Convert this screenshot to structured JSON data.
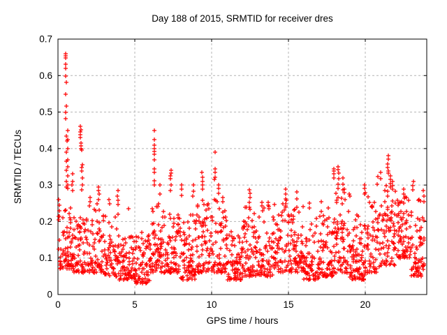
{
  "window": {
    "background": "#ffffff"
  },
  "chart_data": {
    "type": "scatter",
    "title": "Day 188 of 2015, SRMTID for receiver dres",
    "xlabel": "GPS time / hours",
    "ylabel": "SRMTID / TECUs",
    "xlim": [
      0,
      24
    ],
    "ylim": [
      0,
      0.7
    ],
    "xticks": [
      0,
      5,
      10,
      15,
      20
    ],
    "xtick_labels": [
      "0",
      "5",
      "10",
      "15",
      "20"
    ],
    "yticks": [
      0,
      0.1,
      0.2,
      0.3,
      0.4,
      0.5,
      0.6,
      0.7
    ],
    "ytick_labels": [
      "0",
      "0.1",
      "0.2",
      "0.3",
      "0.4",
      "0.5",
      "0.6",
      "0.7"
    ],
    "grid": {
      "show": true,
      "color": "#b4b4b4",
      "dash": "3,3"
    },
    "axis_color": "#000000",
    "legend": null,
    "marker": {
      "shape": "plus",
      "color": "#ff0000",
      "size": 7,
      "stroke_width": 1.25
    },
    "spike_points": [
      {
        "x": 0.08,
        "ys": [
          0.26,
          0.245,
          0.23,
          0.215
        ]
      },
      {
        "x": 0.5,
        "ys": [
          0.66,
          0.655,
          0.648,
          0.632,
          0.62
        ]
      },
      {
        "x": 0.52,
        "ys": [
          0.598,
          0.582,
          0.548,
          0.517,
          0.5,
          0.482
        ]
      },
      {
        "x": 0.55,
        "ys": [
          0.435,
          0.42,
          0.39,
          0.365,
          0.34,
          0.31,
          0.295
        ]
      },
      {
        "x": 0.64,
        "ys": [
          0.45,
          0.425,
          0.4,
          0.37,
          0.35,
          0.325,
          0.3,
          0.29
        ]
      },
      {
        "x": 0.95,
        "ys": [
          0.33,
          0.31,
          0.3,
          0.285
        ]
      },
      {
        "x": 1.48,
        "ys": [
          0.46,
          0.452,
          0.445,
          0.438,
          0.43
        ]
      },
      {
        "x": 1.52,
        "ys": [
          0.415,
          0.408,
          0.4,
          0.395
        ]
      },
      {
        "x": 1.56,
        "ys": [
          0.355,
          0.348,
          0.338,
          0.32,
          0.3,
          0.287
        ]
      },
      {
        "x": 2.1,
        "ys": [
          0.265,
          0.255
        ]
      },
      {
        "x": 2.65,
        "ys": [
          0.295,
          0.285,
          0.275,
          0.26
        ]
      },
      {
        "x": 3.35,
        "ys": [
          0.26,
          0.248
        ]
      },
      {
        "x": 3.88,
        "ys": [
          0.285,
          0.27,
          0.258,
          0.246
        ]
      },
      {
        "x": 4.6,
        "ys": [
          0.235
        ]
      },
      {
        "x": 6.28,
        "ys": [
          0.45,
          0.425,
          0.41,
          0.4,
          0.392,
          0.385,
          0.37,
          0.345,
          0.335,
          0.312,
          0.3
        ]
      },
      {
        "x": 6.65,
        "ys": [
          0.3,
          0.275
        ]
      },
      {
        "x": 7.35,
        "ys": [
          0.34,
          0.332,
          0.325,
          0.317,
          0.3,
          0.285
        ]
      },
      {
        "x": 8.05,
        "ys": [
          0.3,
          0.288,
          0.272
        ]
      },
      {
        "x": 8.8,
        "ys": [
          0.3,
          0.283,
          0.27
        ]
      },
      {
        "x": 9.4,
        "ys": [
          0.335,
          0.322,
          0.31,
          0.3,
          0.288
        ]
      },
      {
        "x": 10.22,
        "ys": [
          0.39,
          0.345,
          0.335,
          0.322,
          0.315
        ]
      },
      {
        "x": 10.45,
        "ys": [
          0.3,
          0.29,
          0.278
        ]
      },
      {
        "x": 10.7,
        "ys": [
          0.265
        ]
      },
      {
        "x": 12.48,
        "ys": [
          0.287,
          0.278,
          0.265,
          0.252,
          0.24
        ]
      },
      {
        "x": 13.25,
        "ys": [
          0.252,
          0.242
        ]
      },
      {
        "x": 13.7,
        "ys": [
          0.253,
          0.245,
          0.235
        ]
      },
      {
        "x": 14.8,
        "ys": [
          0.289,
          0.275,
          0.262,
          0.248
        ]
      },
      {
        "x": 15.55,
        "ys": [
          0.281,
          0.262,
          0.24
        ]
      },
      {
        "x": 16.35,
        "ys": [
          0.25,
          0.238
        ]
      },
      {
        "x": 17.95,
        "ys": [
          0.345,
          0.338,
          0.33,
          0.32
        ]
      },
      {
        "x": 18.25,
        "ys": [
          0.35,
          0.342,
          0.332,
          0.318,
          0.302,
          0.29
        ]
      },
      {
        "x": 18.55,
        "ys": [
          0.32,
          0.302,
          0.286
        ]
      },
      {
        "x": 19.95,
        "ys": [
          0.3,
          0.29,
          0.276
        ]
      },
      {
        "x": 20.8,
        "ys": [
          0.323,
          0.302
        ]
      },
      {
        "x": 21.0,
        "ys": [
          0.335,
          0.318
        ]
      },
      {
        "x": 21.48,
        "ys": [
          0.381,
          0.371,
          0.357,
          0.348,
          0.339,
          0.333
        ]
      },
      {
        "x": 21.62,
        "ys": [
          0.325,
          0.315,
          0.305,
          0.295
        ]
      },
      {
        "x": 21.75,
        "ys": [
          0.31,
          0.298,
          0.288
        ]
      },
      {
        "x": 22.5,
        "ys": [
          0.288,
          0.276
        ]
      },
      {
        "x": 23.1,
        "ys": [
          0.31,
          0.298,
          0.286
        ]
      },
      {
        "x": 23.45,
        "ys": [
          0.088,
          0.075,
          0.062,
          0.052
        ]
      },
      {
        "x": 23.8,
        "ys": [
          0.285,
          0.27,
          0.255
        ]
      }
    ],
    "band": {
      "seed": 20150188,
      "columns_per_hour": 13,
      "points_per_column": [
        4,
        7
      ],
      "y_power": 1.7,
      "x_jitter": 0.06,
      "segments": [
        [
          0.03,
          1.0,
          0.07,
          0.24
        ],
        [
          1.0,
          2.0,
          0.06,
          0.22
        ],
        [
          2.0,
          3.0,
          0.06,
          0.25
        ],
        [
          3.0,
          4.0,
          0.05,
          0.22
        ],
        [
          4.0,
          5.0,
          0.04,
          0.16
        ],
        [
          5.0,
          6.0,
          0.03,
          0.17
        ],
        [
          6.0,
          7.0,
          0.06,
          0.25
        ],
        [
          7.0,
          8.0,
          0.06,
          0.22
        ],
        [
          8.0,
          9.0,
          0.04,
          0.22
        ],
        [
          9.0,
          10.0,
          0.06,
          0.26
        ],
        [
          10.0,
          11.0,
          0.06,
          0.27
        ],
        [
          11.0,
          12.0,
          0.04,
          0.18
        ],
        [
          12.0,
          13.0,
          0.05,
          0.24
        ],
        [
          13.0,
          14.0,
          0.05,
          0.25
        ],
        [
          14.0,
          15.0,
          0.06,
          0.26
        ],
        [
          15.0,
          16.0,
          0.06,
          0.25
        ],
        [
          16.0,
          17.0,
          0.04,
          0.21
        ],
        [
          17.0,
          18.0,
          0.05,
          0.26
        ],
        [
          18.0,
          19.0,
          0.06,
          0.29
        ],
        [
          19.0,
          20.0,
          0.04,
          0.22
        ],
        [
          20.0,
          21.0,
          0.06,
          0.28
        ],
        [
          21.0,
          22.0,
          0.08,
          0.3
        ],
        [
          22.0,
          23.0,
          0.1,
          0.27
        ],
        [
          23.0,
          23.85,
          0.05,
          0.26
        ]
      ]
    }
  }
}
